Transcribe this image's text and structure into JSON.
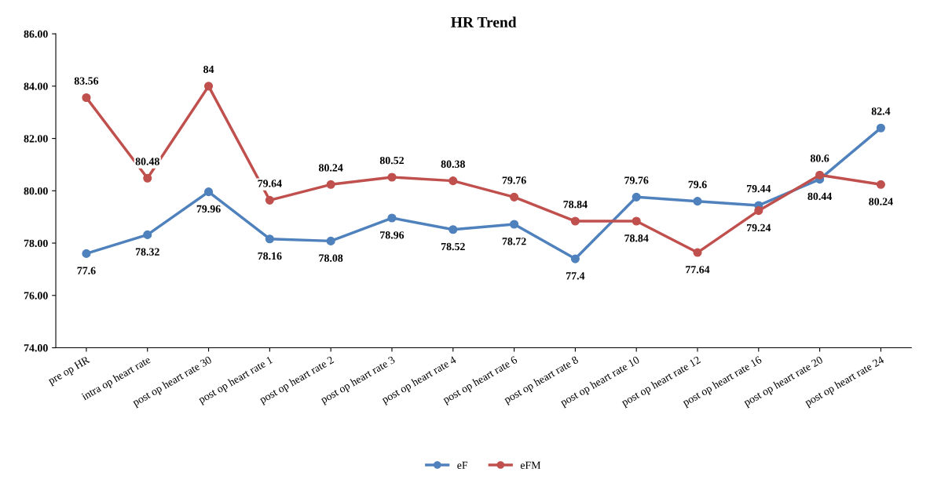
{
  "chart_data": {
    "type": "line",
    "title": "HR Trend",
    "categories": [
      "pre op HR",
      "intra op heart rate",
      "post op heart rate 30",
      "post op heart rate 1",
      "post op heart rate 2",
      "post op heart rate 3",
      "post op heart rate 4",
      "post op heart rate 6",
      "post op heart rate 8",
      "post op heart rate 10",
      "post op heart rate 12",
      "post op heart rate 16",
      "post op heart rate 20",
      "post op heart rate 24"
    ],
    "series": [
      {
        "name": "eF",
        "color": "#4f81bd",
        "values": [
          77.6,
          78.32,
          79.96,
          78.16,
          78.08,
          78.96,
          78.52,
          78.72,
          77.4,
          79.76,
          79.6,
          79.44,
          80.44,
          82.4
        ]
      },
      {
        "name": "eFM",
        "color": "#c0504d",
        "values": [
          83.56,
          80.48,
          84,
          79.64,
          80.24,
          80.52,
          80.38,
          79.76,
          78.84,
          78.84,
          77.64,
          79.24,
          80.6,
          80.24
        ]
      }
    ],
    "ylim": [
      74,
      86
    ],
    "yticks": [
      {
        "value": 74,
        "label": "74.00"
      },
      {
        "value": 76,
        "label": "76.00"
      },
      {
        "value": 78,
        "label": "78.00"
      },
      {
        "value": 80,
        "label": "80.00"
      },
      {
        "value": 82,
        "label": "82.00"
      },
      {
        "value": 84,
        "label": "84.00"
      },
      {
        "value": 86,
        "label": "86.00"
      }
    ],
    "data_labels": true,
    "marker": "circle",
    "line_style": "solid",
    "grid": false,
    "legend": "bottom"
  }
}
